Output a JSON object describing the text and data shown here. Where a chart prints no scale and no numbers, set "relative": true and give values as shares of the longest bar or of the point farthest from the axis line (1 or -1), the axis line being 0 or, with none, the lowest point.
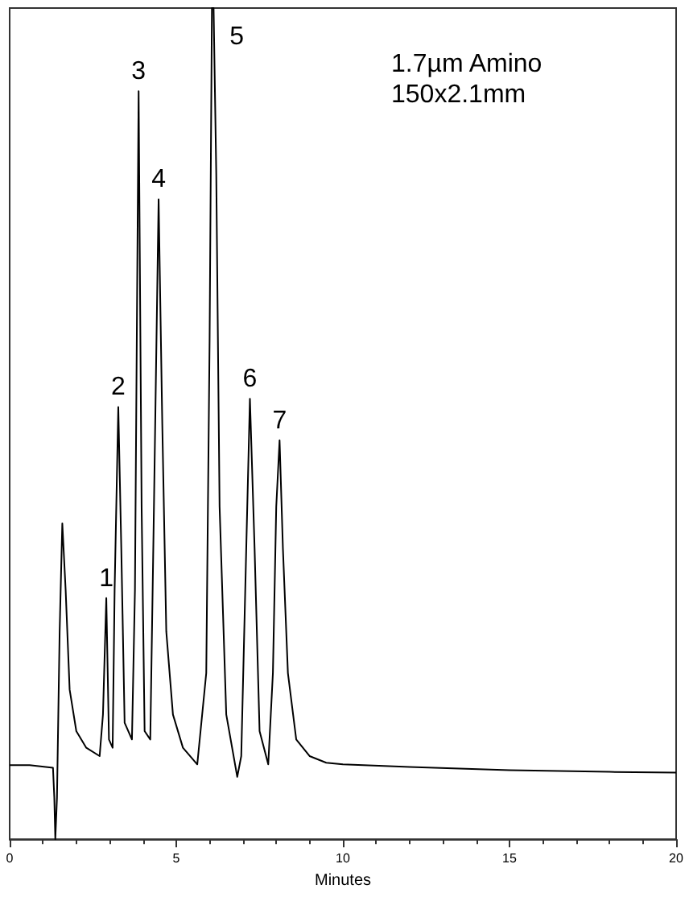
{
  "chart_data": {
    "type": "line",
    "xlabel": "Minutes",
    "relative": true,
    "xlim": [
      0,
      20
    ],
    "xticks": [
      0,
      5,
      10,
      15,
      20
    ],
    "grid": false,
    "marker": "none",
    "line_style": "solid",
    "series": [
      {
        "color": "#000000",
        "x": [
          0,
          0.6,
          1.3,
          1.34,
          1.37,
          1.42,
          1.5,
          1.58,
          1.68,
          1.8,
          2.0,
          2.3,
          2.7,
          2.8,
          2.9,
          2.98,
          3.09,
          3.15,
          3.26,
          3.35,
          3.45,
          3.67,
          3.76,
          3.87,
          3.96,
          4.05,
          4.22,
          4.33,
          4.47,
          4.58,
          4.7,
          4.9,
          5.2,
          5.63,
          5.9,
          6.0,
          6.07,
          6.12,
          6.2,
          6.3,
          6.5,
          6.83,
          6.95,
          7.1,
          7.21,
          7.35,
          7.5,
          7.76,
          7.9,
          8.0,
          8.1,
          8.2,
          8.35,
          8.6,
          9.0,
          9.5,
          10,
          12,
          15,
          18,
          20
        ],
        "values": [
          0.089,
          0.089,
          0.086,
          0.05,
          0,
          0.05,
          0.25,
          0.38,
          0.3,
          0.18,
          0.13,
          0.11,
          0.1,
          0.15,
          0.29,
          0.12,
          0.11,
          0.3,
          0.52,
          0.35,
          0.14,
          0.12,
          0.3,
          0.9,
          0.4,
          0.13,
          0.12,
          0.4,
          0.77,
          0.5,
          0.25,
          0.15,
          0.11,
          0.09,
          0.2,
          0.6,
          1,
          1,
          0.8,
          0.4,
          0.15,
          0.075,
          0.1,
          0.35,
          0.53,
          0.35,
          0.13,
          0.09,
          0.2,
          0.4,
          0.48,
          0.35,
          0.2,
          0.12,
          0.1,
          0.092,
          0.09,
          0.087,
          0.083,
          0.081,
          0.08
        ]
      }
    ],
    "annotations": [
      {
        "text": "1",
        "x": 2.9,
        "y": 0.29
      },
      {
        "text": "2",
        "x": 3.26,
        "y": 0.52
      },
      {
        "text": "3",
        "x": 3.87,
        "y": 0.9
      },
      {
        "text": "4",
        "x": 4.47,
        "y": 0.77
      },
      {
        "text": "5",
        "x": 6.12,
        "y": 1
      },
      {
        "text": "6",
        "x": 7.21,
        "y": 0.53
      },
      {
        "text": "7",
        "x": 8.1,
        "y": 0.48
      },
      "1.7µm Amino",
      "150x2.1mm"
    ]
  }
}
